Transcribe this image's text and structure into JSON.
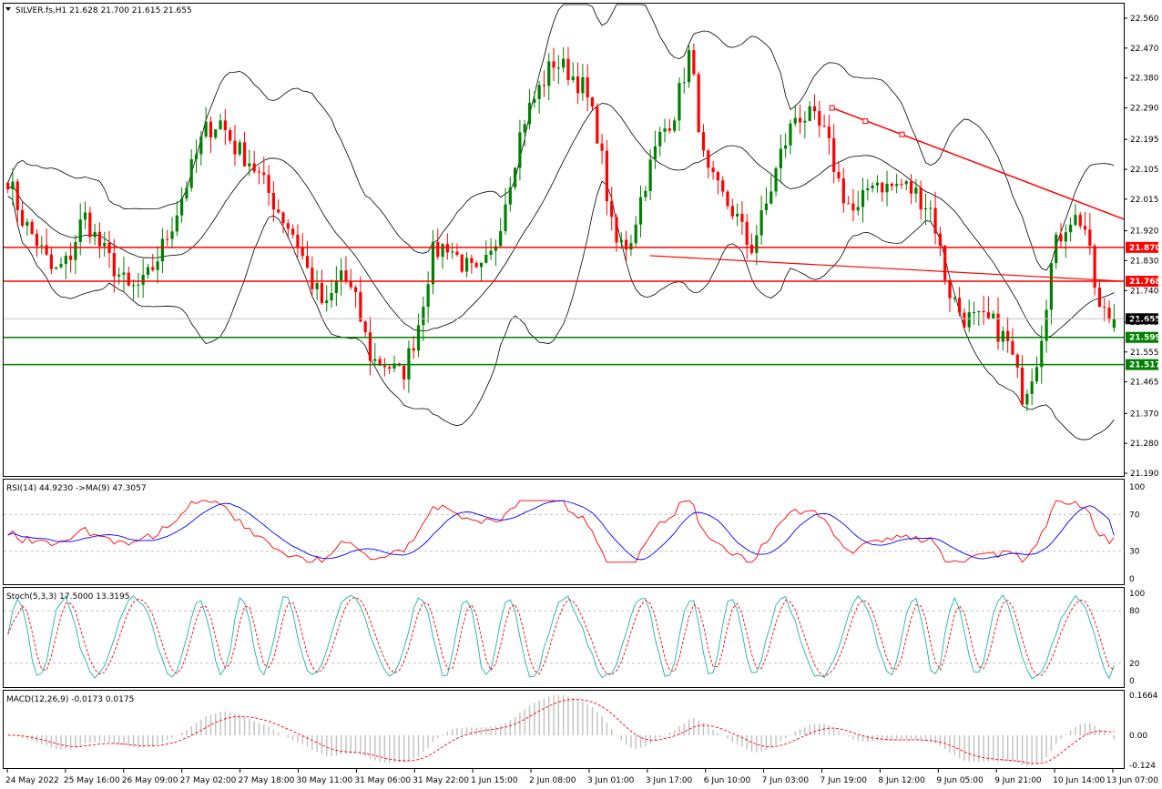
{
  "header": {
    "symbol_info": "SILVER.fs,H1  21.628 21.700 21.615 21.655",
    "rsi_label": "RSI(14) 44.9230  ->MA(9) 47.3057",
    "stoch_label": "Stoch(5,3,3) 17.5000 13.3195",
    "macd_label": "MACD(12,26,9) -0.0173 0.0175"
  },
  "price_axis": {
    "ticks": [
      "22.560",
      "22.470",
      "22.380",
      "22.290",
      "22.195",
      "22.105",
      "22.015",
      "21.920",
      "21.830",
      "21.740",
      "21.645",
      "21.555",
      "21.465",
      "21.370",
      "21.280",
      "21.190"
    ],
    "current_price": "21.655"
  },
  "rsi_axis": {
    "ticks": [
      "100",
      "70",
      "30",
      "0"
    ]
  },
  "stoch_axis": {
    "ticks": [
      "100",
      "80",
      "20",
      "0"
    ]
  },
  "macd_axis": {
    "ticks": [
      "0.1664",
      "0.00",
      "-0.124"
    ]
  },
  "time_axis": [
    "24 May 2022",
    "25 May 16:00",
    "26 May 09:00",
    "27 May 02:00",
    "27 May 18:00",
    "30 May 11:00",
    "31 May 06:00",
    "31 May 22:00",
    "1 Jun 15:00",
    "2 Jun 08:00",
    "3 Jun 01:00",
    "3 Jun 17:00",
    "6 Jun 10:00",
    "7 Jun 03:00",
    "7 Jun 19:00",
    "8 Jun 12:00",
    "9 Jun 05:00",
    "9 Jun 21:00",
    "10 Jun 14:00",
    "13 Jun 07:00"
  ],
  "levels": [
    {
      "price": 21.87,
      "label": "21.870",
      "color": "#ff0000"
    },
    {
      "price": 21.768,
      "label": "21.768",
      "color": "#ff0000"
    },
    {
      "price": 21.599,
      "label": "21.599",
      "color": "#008000"
    },
    {
      "price": 21.517,
      "label": "21.517",
      "color": "#008000"
    }
  ],
  "colors": {
    "bull": "#008000",
    "bear": "#ff0000",
    "band": "#000000",
    "rsi": "#ff0000",
    "rsi_ma": "#0000ff",
    "stoch_main": "#20b2aa",
    "stoch_signal": "#ff0000",
    "macd_hist": "#c0c0c0",
    "macd_signal": "#ff0000",
    "trendline": "#ff0000",
    "current_price_bg": "#000000"
  },
  "chart_data": {
    "type": "candlestick",
    "title": "SILVER.fs,H1",
    "ohlc_last": {
      "open": 21.628,
      "high": 21.7,
      "low": 21.615,
      "close": 21.655
    },
    "x": [
      "24 May 2022",
      "25 May 16:00",
      "26 May 09:00",
      "27 May 02:00",
      "27 May 18:00",
      "30 May 11:00",
      "31 May 06:00",
      "31 May 22:00",
      "1 Jun 15:00",
      "2 Jun 08:00",
      "3 Jun 01:00",
      "3 Jun 17:00",
      "6 Jun 10:00",
      "7 Jun 03:00",
      "7 Jun 19:00",
      "8 Jun 12:00",
      "9 Jun 05:00",
      "9 Jun 21:00",
      "10 Jun 14:00",
      "13 Jun 07:00"
    ],
    "close_path": [
      22.08,
      21.95,
      21.88,
      21.79,
      21.83,
      21.97,
      21.88,
      21.81,
      21.74,
      21.76,
      21.85,
      21.96,
      22.09,
      22.22,
      22.25,
      22.17,
      22.13,
      22.05,
      21.97,
      21.9,
      21.77,
      21.68,
      21.8,
      21.7,
      21.53,
      21.52,
      21.48,
      21.62,
      21.85,
      21.88,
      21.82,
      21.78,
      21.85,
      22.05,
      22.25,
      22.34,
      22.43,
      22.4,
      22.35,
      22.2,
      21.88,
      21.88,
      22.06,
      22.2,
      22.28,
      22.46,
      22.1,
      22.03,
      21.97,
      21.86,
      21.99,
      22.15,
      22.27,
      22.26,
      22.2,
      22.04,
      21.96,
      22.08,
      22.05,
      22.06,
      22.03,
      21.98,
      21.75,
      21.66,
      21.65,
      21.64,
      21.58,
      21.42,
      21.55,
      21.86,
      21.96,
      21.95,
      21.68,
      21.65
    ],
    "ylim": [
      21.19,
      22.56
    ],
    "indicators": {
      "rsi": {
        "period": 14,
        "value": 44.923,
        "ma_period": 9,
        "ma_value": 47.3057,
        "levels": [
          70,
          30
        ]
      },
      "stochastic": {
        "params": "5,3,3",
        "main": 17.5,
        "signal": 13.3195,
        "levels": [
          80,
          20
        ]
      },
      "macd": {
        "params": "12,26,9",
        "main": -0.0173,
        "signal": 0.0175
      }
    }
  }
}
